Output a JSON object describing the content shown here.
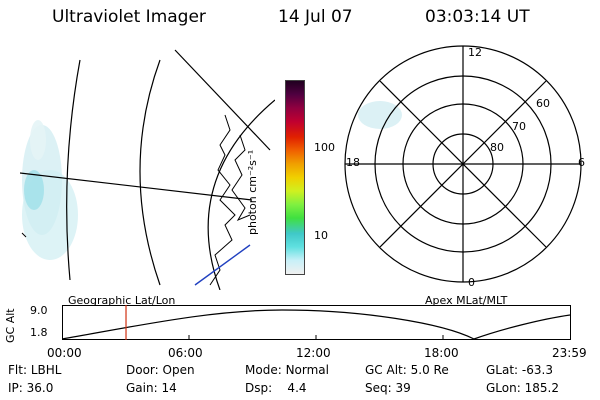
{
  "header": {
    "instrument": "Ultraviolet Imager",
    "date": "14 Jul 07",
    "time": "03:03:14 UT"
  },
  "left_map": {
    "label": "Geographic Lat/Lon"
  },
  "colorbar": {
    "unit_label": "photon cm⁻²s⁻¹",
    "ticks": [
      "100",
      "10"
    ],
    "colors": [
      "#f0f0f0",
      "#c8f0f8",
      "#60e0e0",
      "#40c8c8",
      "#40e040",
      "#80f040",
      "#d0f020",
      "#f0d000",
      "#f0a000",
      "#f06000",
      "#e02000",
      "#c00030",
      "#900040",
      "#500040",
      "#200020"
    ]
  },
  "polar_plot": {
    "label": "Apex MLat/MLT",
    "mlt_labels": {
      "top": "12",
      "left": "18",
      "right": "6",
      "bottom": "0"
    },
    "lat_labels": [
      "60",
      "70",
      "80"
    ]
  },
  "timeline": {
    "y_axis_label": "GC Alt",
    "y_ticks": [
      "9.0",
      "1.8"
    ],
    "x_ticks": [
      "00:00",
      "06:00",
      "12:00",
      "18:00",
      "23:59"
    ],
    "current_time_fraction": 0.126
  },
  "status": {
    "row1": [
      {
        "label": "Flt:",
        "value": "LBHL"
      },
      {
        "label": "Door:",
        "value": "Open"
      },
      {
        "label": "Mode:",
        "value": "Normal"
      },
      {
        "label": "GC Alt:",
        "value": "5.0 Re"
      },
      {
        "label": "GLat:",
        "value": "-63.3"
      }
    ],
    "row2": [
      {
        "label": "IP:",
        "value": "36.0"
      },
      {
        "label": "Gain:",
        "value": "14"
      },
      {
        "label": "Dsp:",
        "value": "   4.4"
      },
      {
        "label": "Seq:",
        "value": "39"
      },
      {
        "label": "GLon:",
        "value": "185.2"
      }
    ]
  }
}
